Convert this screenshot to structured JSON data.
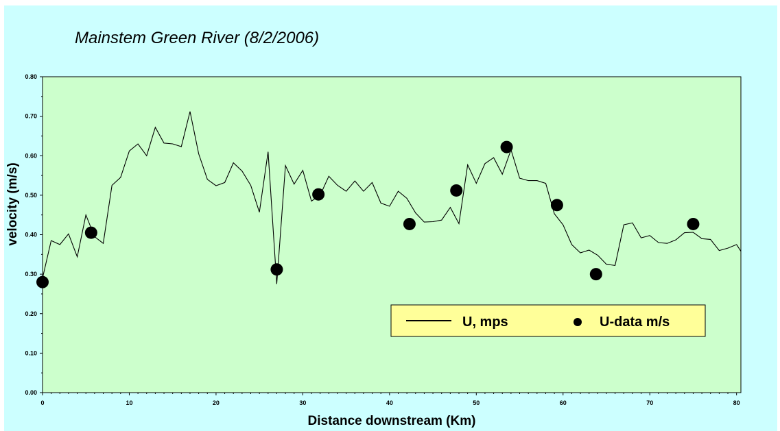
{
  "chart_data": {
    "type": "line",
    "title": "Mainstem Green River (8/2/2006)",
    "xlabel": "Distance downstream (Km)",
    "ylabel": "velocity (m/s)",
    "xlim": [
      0,
      80.5
    ],
    "ylim": [
      0,
      0.8
    ],
    "x_ticks": [
      "0",
      "10",
      "20",
      "30",
      "40",
      "50",
      "60",
      "70",
      "80"
    ],
    "y_ticks": [
      "0.00",
      "0.10",
      "0.20",
      "0.30",
      "0.40",
      "0.50",
      "0.60",
      "0.70",
      "0.80"
    ],
    "grid": false,
    "legend_position": "bottom-right",
    "plot_background": "#ccffcc",
    "frame_background": "#ccffff",
    "legend_background": "#ffff99",
    "series": [
      {
        "name": "U, mps",
        "kind": "line",
        "color": "#000000",
        "x": [
          0,
          1,
          2,
          3,
          4,
          5,
          6,
          7,
          8,
          9,
          10,
          11,
          12,
          13,
          14,
          15,
          16,
          17,
          18,
          19,
          20,
          21,
          22,
          23,
          24,
          25,
          26,
          27,
          28,
          29,
          30,
          31,
          32,
          33,
          34,
          35,
          36,
          37,
          38,
          39,
          40,
          41,
          42,
          43,
          44,
          45,
          46,
          47,
          48,
          49,
          50,
          51,
          52,
          53,
          54,
          55,
          56,
          57,
          58,
          59,
          60,
          61,
          62,
          63,
          64,
          65,
          66,
          67,
          68,
          69,
          70,
          71,
          72,
          73,
          74,
          75,
          76,
          77,
          78,
          79,
          80,
          80.5
        ],
        "y": [
          0.29,
          0.385,
          0.375,
          0.402,
          0.344,
          0.45,
          0.395,
          0.378,
          0.525,
          0.545,
          0.612,
          0.63,
          0.6,
          0.672,
          0.632,
          0.63,
          0.623,
          0.712,
          0.605,
          0.54,
          0.524,
          0.532,
          0.582,
          0.561,
          0.525,
          0.457,
          0.61,
          0.275,
          0.575,
          0.528,
          0.563,
          0.485,
          0.5,
          0.548,
          0.525,
          0.51,
          0.536,
          0.51,
          0.532,
          0.48,
          0.472,
          0.51,
          0.492,
          0.455,
          0.432,
          0.433,
          0.437,
          0.469,
          0.428,
          0.577,
          0.53,
          0.58,
          0.595,
          0.553,
          0.615,
          0.543,
          0.537,
          0.537,
          0.53,
          0.453,
          0.425,
          0.375,
          0.354,
          0.361,
          0.348,
          0.325,
          0.322,
          0.425,
          0.43,
          0.392,
          0.398,
          0.38,
          0.378,
          0.387,
          0.405,
          0.406,
          0.39,
          0.388,
          0.36,
          0.366,
          0.375,
          0.358
        ]
      },
      {
        "name": "U-data m/s",
        "kind": "scatter",
        "color": "#000000",
        "x": [
          0,
          5.6,
          27,
          31.8,
          42.3,
          47.7,
          53.5,
          59.3,
          63.8,
          75
        ],
        "y": [
          0.28,
          0.405,
          0.312,
          0.502,
          0.427,
          0.512,
          0.622,
          0.475,
          0.3,
          0.427
        ]
      }
    ]
  }
}
